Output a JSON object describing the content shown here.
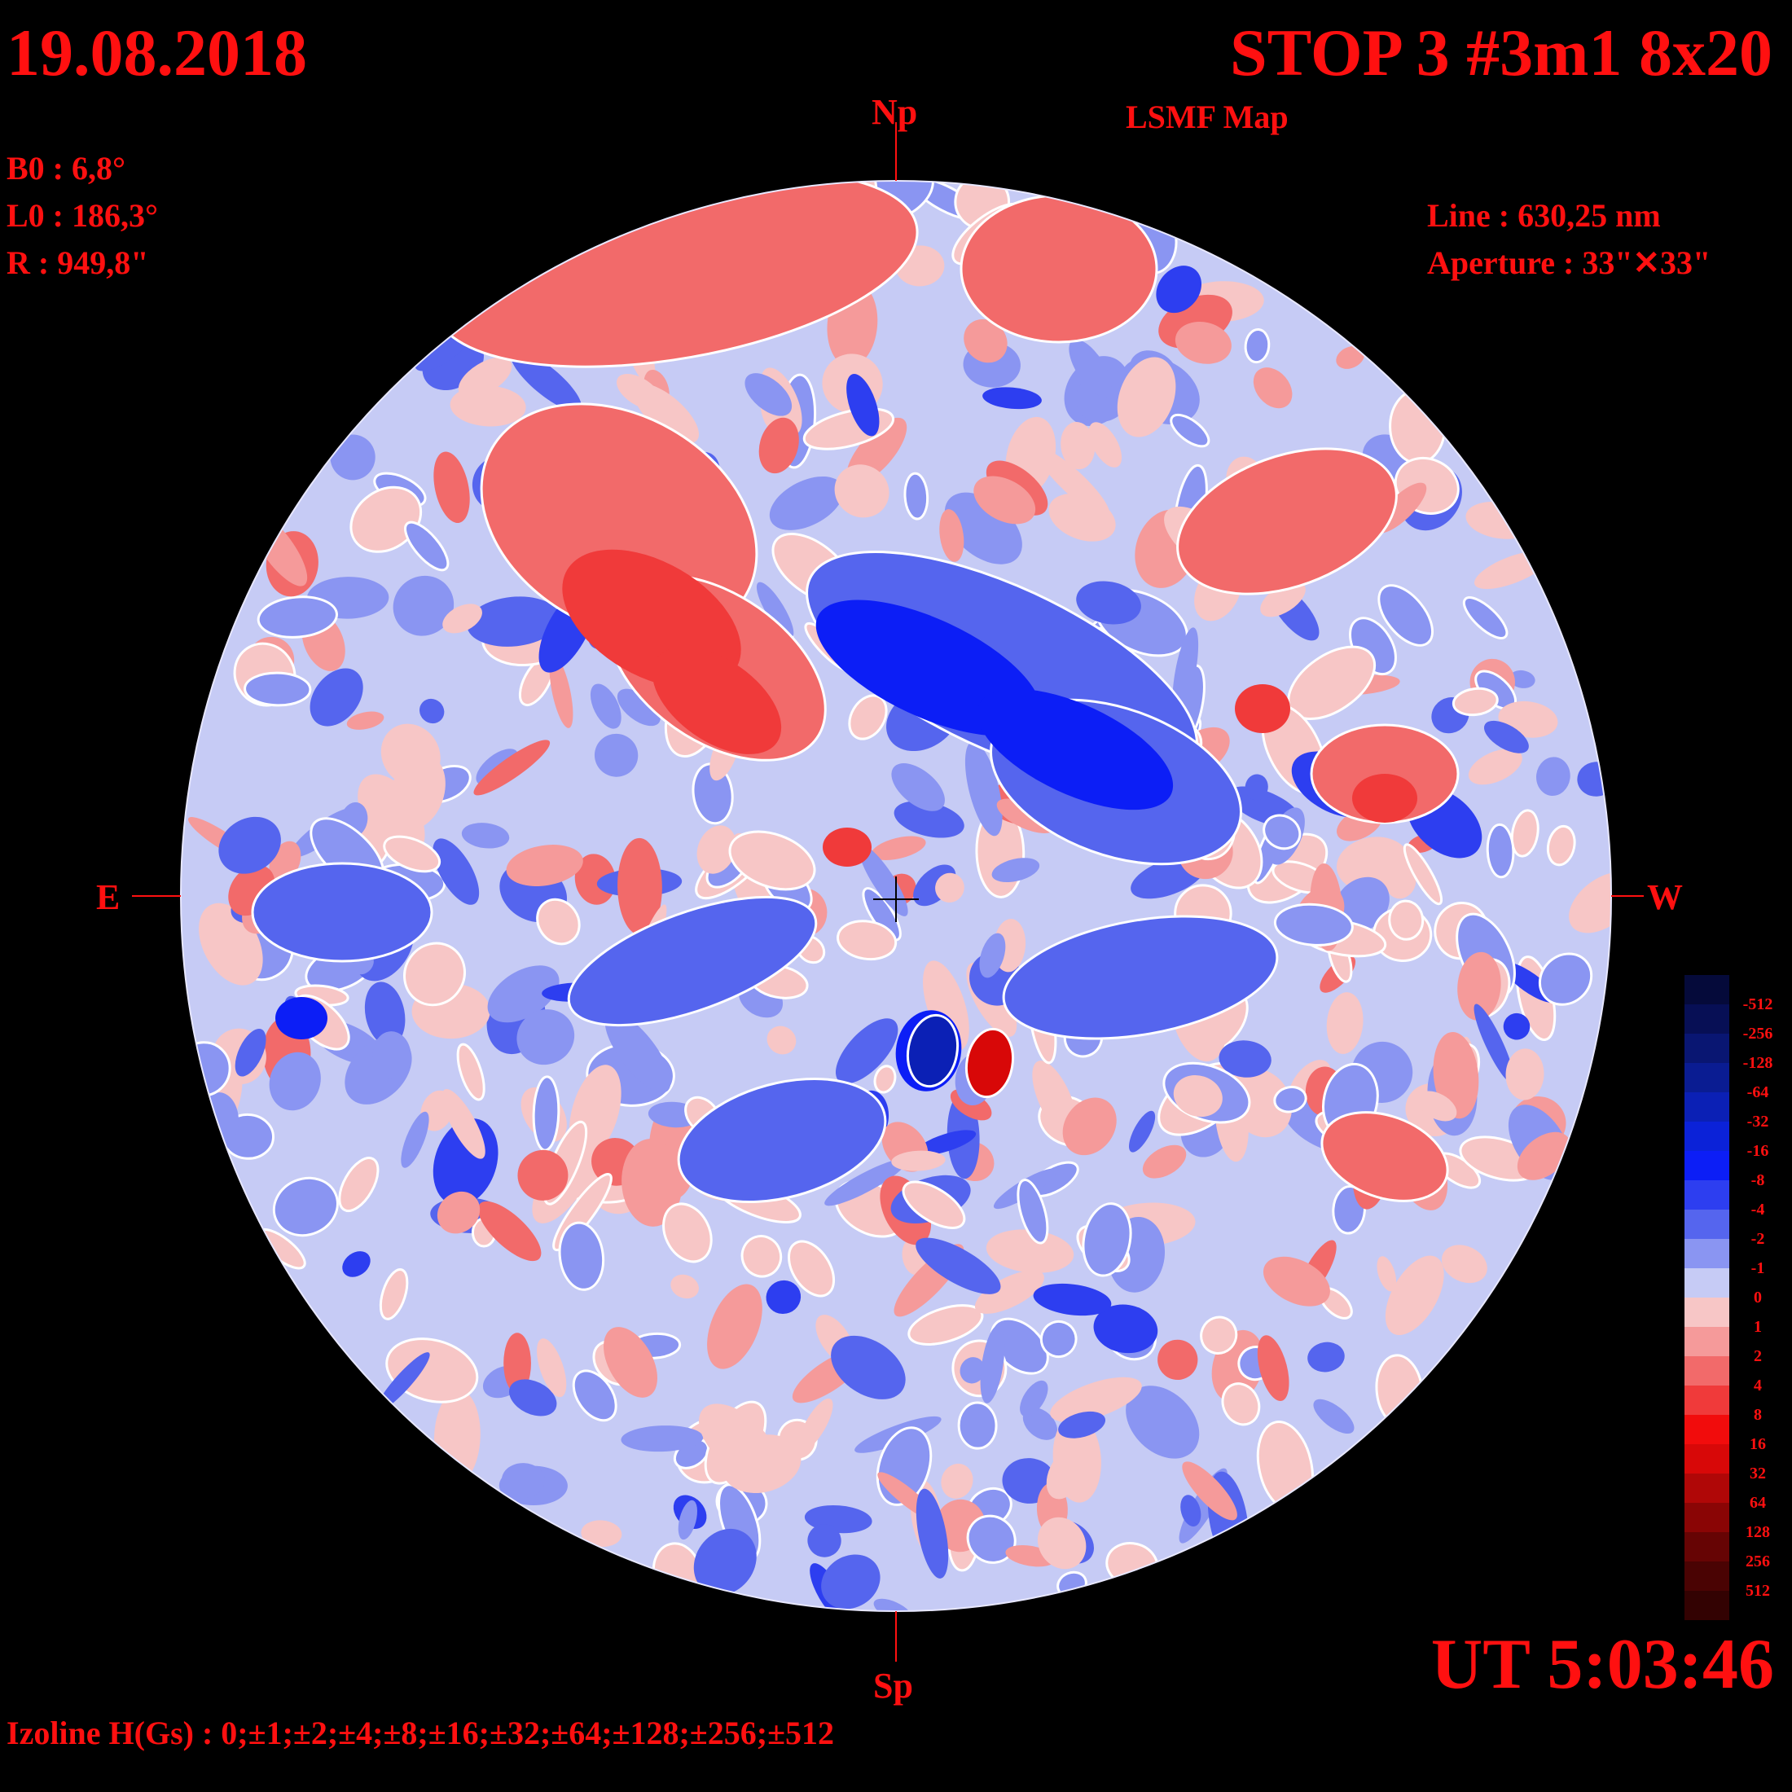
{
  "header": {
    "date": "19.08.2018",
    "title": "STOP 3 #3m1 8x20",
    "subtitle": "LSMF  Map"
  },
  "params": {
    "b0": "B0 : 6,8°",
    "l0": "L0 : 186,3°",
    "r": "R  : 949,8\""
  },
  "instrument": {
    "line": "Line :  630,25 nm",
    "aperture": "Aperture : 33\"✕33\""
  },
  "compass": {
    "north": "Np",
    "south": "Sp",
    "east": "E",
    "west": "W"
  },
  "footer": {
    "ut": "UT 5:03:46",
    "izoline": "Izoline H(Gs) : 0;±1;±2;±4;±8;±16;±32;±64;±128;±256;±512"
  },
  "color_scale": {
    "labels": [
      "-512",
      "-256",
      "-128",
      "-64",
      "-32",
      "-16",
      "-8",
      "-4",
      "-2",
      "-1",
      "0",
      "1",
      "2",
      "4",
      "8",
      "16",
      "32",
      "64",
      "128",
      "256",
      "512"
    ],
    "colors": [
      "#050a3a",
      "#070f55",
      "#091672",
      "#0a1c92",
      "#0b20b5",
      "#0b22d8",
      "#0c1ef6",
      "#2d3ef0",
      "#5565ee",
      "#8a95f2",
      "#c6cbf5",
      "#f7c6c6",
      "#f59a9a",
      "#f26a6a",
      "#f03a3a",
      "#f20c0c",
      "#d80808",
      "#b00707",
      "#8a0505",
      "#660404",
      "#4a0303",
      "#330202"
    ]
  },
  "colors": {
    "text": "#ff1010",
    "background": "#000000",
    "contour": "#ffffff"
  }
}
